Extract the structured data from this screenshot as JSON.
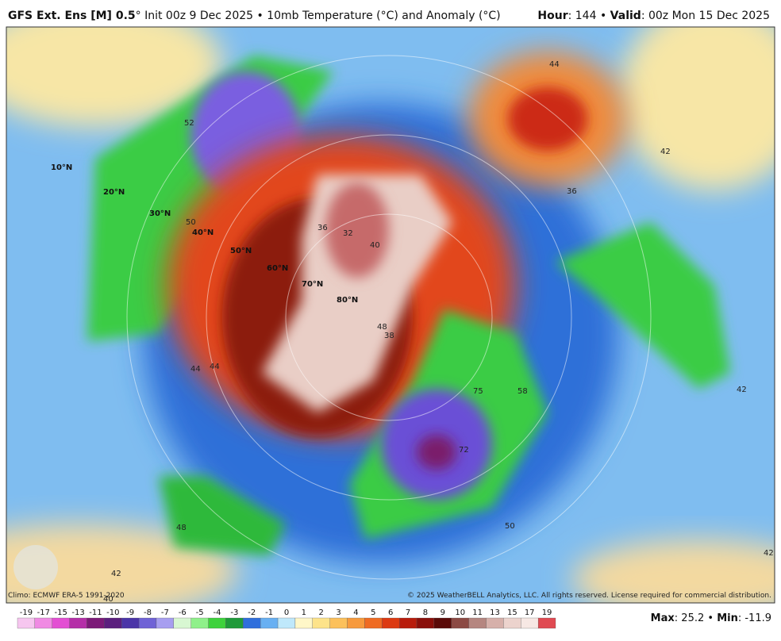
{
  "header": {
    "title": "GFS Ext. Ens [M] 0.5",
    "subtitle": "° Init 00z 9 Dec 2025 • 10mb Temperature (°C) and Anomaly (°C)",
    "hour_label": "Hour",
    "hour_value": ": 144 •",
    "valid_label": "Valid",
    "valid_value": ": 00z Mon 15 Dec 2025"
  },
  "map": {
    "lat_labels": [
      "10°N",
      "20°N",
      "30°N",
      "40°N",
      "50°N",
      "60°N",
      "70°N",
      "80°N"
    ],
    "contour_labels": [
      "52",
      "50",
      "44",
      "48",
      "42",
      "40",
      "44",
      "36",
      "32",
      "40",
      "48",
      "38",
      "58",
      "72",
      "75",
      "50",
      "42",
      "44",
      "42",
      "36",
      "42"
    ]
  },
  "footer": {
    "climo": "Climo: ECMWF ERA-5 1991-2020",
    "copyright": "© 2025 WeatherBELL Analytics, LLC. All rights reserved. License required for commercial distribution."
  },
  "colorbar": {
    "labels": [
      "-19",
      "-17",
      "-15",
      "-13",
      "-11",
      "-10",
      "-9",
      "-8",
      "-7",
      "-6",
      "-5",
      "-4",
      "-3",
      "-2",
      "-1",
      "0",
      "1",
      "2",
      "3",
      "4",
      "5",
      "6",
      "7",
      "8",
      "9",
      "10",
      "11",
      "13",
      "15",
      "17",
      "19"
    ],
    "colors": [
      "#f6c6ef",
      "#f08ae3",
      "#e34fd3",
      "#b52fa8",
      "#7c1a78",
      "#5b1f7e",
      "#4b35a8",
      "#6f62d6",
      "#a79ef0",
      "#d8f7d2",
      "#8ff08a",
      "#3ed23c",
      "#1f9a3a",
      "#2f6fdc",
      "#68b0f2",
      "#bfe8fb",
      "#fff7c8",
      "#fde38a",
      "#fcc15b",
      "#f79a3c",
      "#ef6b22",
      "#dc3a12",
      "#b81c0c",
      "#8a0f0a",
      "#5a0a08",
      "#8c4a44",
      "#b58680",
      "#d6b0aa",
      "#ecd3cd",
      "#f7e8e4",
      "#e04a52"
    ]
  },
  "stats": {
    "max_label": "Max",
    "max_value": ": 25.2 •",
    "min_label": "Min",
    "min_value": ": -11.9"
  }
}
